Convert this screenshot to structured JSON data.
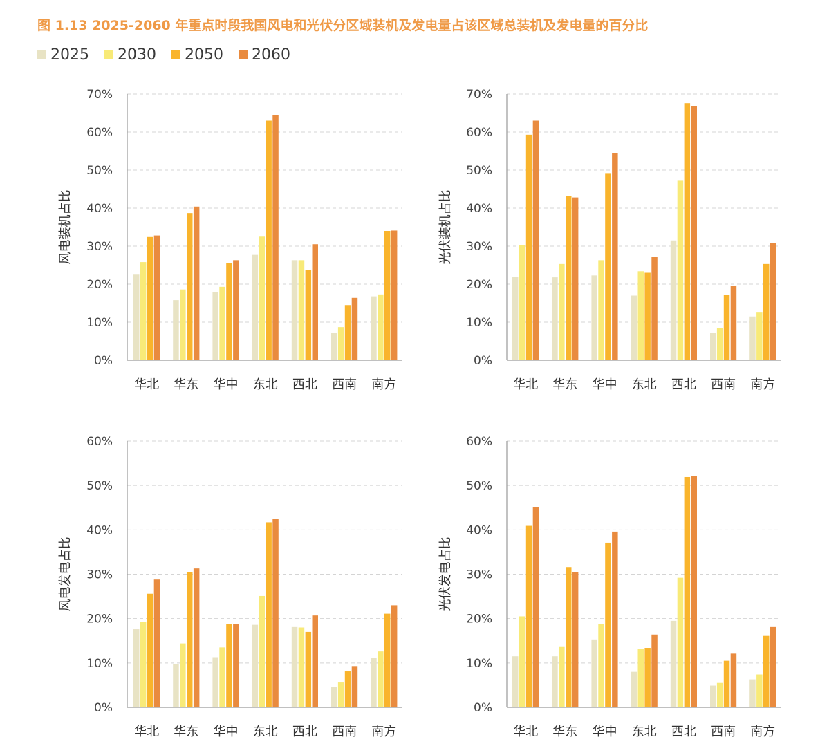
{
  "title": "图 1.13    2025-2060 年重点时段我国风电和光伏分区域装机及发电量占该区域总装机及发电量的百分比",
  "legend": [
    {
      "label": "2025",
      "color": "#e8e3c4"
    },
    {
      "label": "2030",
      "color": "#f8ea78"
    },
    {
      "label": "2050",
      "color": "#f9b42c"
    },
    {
      "label": "2060",
      "color": "#e98b3f"
    }
  ],
  "chart_data": [
    {
      "type": "bar",
      "ylabel": "风电装机占比",
      "ylim": [
        0,
        70
      ],
      "yticks": [
        "0%",
        "10%",
        "20%",
        "30%",
        "40%",
        "50%",
        "60%",
        "70%"
      ],
      "categories": [
        "华北",
        "华东",
        "华中",
        "东北",
        "西北",
        "西南",
        "南方"
      ],
      "series": [
        {
          "name": "2025",
          "values": [
            22.5,
            15.8,
            18.0,
            27.7,
            26.3,
            7.2,
            16.8
          ]
        },
        {
          "name": "2030",
          "values": [
            25.8,
            18.6,
            19.3,
            32.5,
            26.3,
            8.7,
            17.3
          ]
        },
        {
          "name": "2050",
          "values": [
            32.4,
            38.7,
            25.5,
            63.0,
            23.7,
            14.5,
            34.0
          ]
        },
        {
          "name": "2060",
          "values": [
            32.8,
            40.4,
            26.3,
            64.5,
            30.5,
            16.4,
            34.1
          ]
        }
      ]
    },
    {
      "type": "bar",
      "ylabel": "光伏装机占比",
      "ylim": [
        0,
        70
      ],
      "yticks": [
        "0%",
        "10%",
        "20%",
        "30%",
        "40%",
        "50%",
        "60%",
        "70%"
      ],
      "categories": [
        "华北",
        "华东",
        "华中",
        "东北",
        "西北",
        "西南",
        "南方"
      ],
      "series": [
        {
          "name": "2025",
          "values": [
            22.0,
            21.8,
            22.3,
            17.0,
            31.5,
            7.2,
            11.5
          ]
        },
        {
          "name": "2030",
          "values": [
            30.3,
            25.3,
            26.3,
            23.4,
            47.2,
            8.5,
            12.7
          ]
        },
        {
          "name": "2050",
          "values": [
            59.3,
            43.2,
            49.2,
            23.0,
            67.6,
            17.2,
            25.3
          ]
        },
        {
          "name": "2060",
          "values": [
            63.0,
            42.8,
            54.5,
            27.1,
            66.9,
            19.6,
            30.9
          ]
        }
      ]
    },
    {
      "type": "bar",
      "ylabel": "风电发电占比",
      "ylim": [
        0,
        60
      ],
      "yticks": [
        "0%",
        "10%",
        "20%",
        "30%",
        "40%",
        "50%",
        "60%"
      ],
      "categories": [
        "华北",
        "华东",
        "华中",
        "东北",
        "西北",
        "西南",
        "南方"
      ],
      "series": [
        {
          "name": "2025",
          "values": [
            17.6,
            9.7,
            11.3,
            18.6,
            18.1,
            4.6,
            11.1
          ]
        },
        {
          "name": "2030",
          "values": [
            19.2,
            14.4,
            13.5,
            25.1,
            18.0,
            5.6,
            12.6
          ]
        },
        {
          "name": "2050",
          "values": [
            25.6,
            30.4,
            18.7,
            41.7,
            17.0,
            8.1,
            21.1
          ]
        },
        {
          "name": "2060",
          "values": [
            28.8,
            31.3,
            18.7,
            42.5,
            20.7,
            9.3,
            23.0
          ]
        }
      ]
    },
    {
      "type": "bar",
      "ylabel": "光伏发电占比",
      "ylim": [
        0,
        60
      ],
      "yticks": [
        "0%",
        "10%",
        "20%",
        "30%",
        "40%",
        "50%",
        "60%"
      ],
      "categories": [
        "华北",
        "华东",
        "华中",
        "东北",
        "西北",
        "西南",
        "南方"
      ],
      "series": [
        {
          "name": "2025",
          "values": [
            11.5,
            11.5,
            15.3,
            8.0,
            19.5,
            4.9,
            6.3
          ]
        },
        {
          "name": "2030",
          "values": [
            20.5,
            13.6,
            18.8,
            13.1,
            29.2,
            5.5,
            7.4
          ]
        },
        {
          "name": "2050",
          "values": [
            40.9,
            31.6,
            37.1,
            13.4,
            51.9,
            10.5,
            16.1
          ]
        },
        {
          "name": "2060",
          "values": [
            45.1,
            30.4,
            39.6,
            16.4,
            52.1,
            12.1,
            18.1
          ]
        }
      ]
    }
  ]
}
